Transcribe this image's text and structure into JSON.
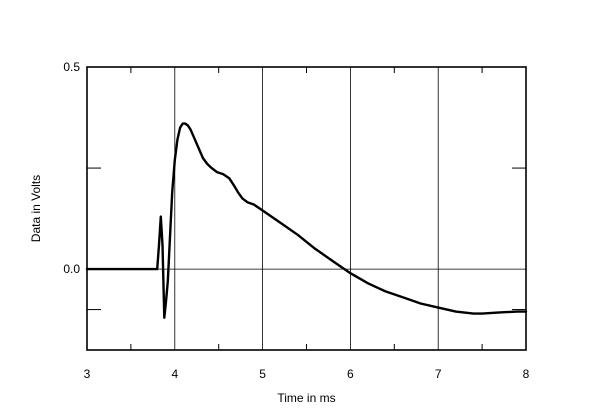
{
  "chart_data": {
    "type": "line",
    "title": "",
    "xlabel": "Time in ms",
    "ylabel": "Data in Volts",
    "xlim": [
      3,
      8
    ],
    "ylim": [
      -0.2,
      0.5
    ],
    "x_ticks": [
      3,
      4,
      5,
      6,
      7,
      8
    ],
    "x_tick_labels": [
      "3",
      "4",
      "5",
      "6",
      "7",
      "8"
    ],
    "y_ticks": [
      0.0,
      0.5
    ],
    "y_tick_labels": [
      "0.0",
      "0.5"
    ],
    "y_minor_ticks": [
      -0.1,
      0.25
    ],
    "x_minor_ticks": [
      3.5,
      4.5,
      5.5,
      6.5,
      7.5
    ],
    "grid": true,
    "line_color": "#000000",
    "series": [
      {
        "x": [
          3.0,
          3.8,
          3.82,
          3.84,
          3.86,
          3.88,
          3.9,
          3.92,
          3.95,
          3.97,
          4.0,
          4.03,
          4.06,
          4.09,
          4.12,
          4.15,
          4.18,
          4.22,
          4.27,
          4.32,
          4.37,
          4.42,
          4.48,
          4.55,
          4.62,
          4.68,
          4.72,
          4.77,
          4.83,
          4.9,
          5.0,
          5.2,
          5.4,
          5.6,
          5.8,
          6.0,
          6.2,
          6.4,
          6.6,
          6.8,
          7.0,
          7.2,
          7.4,
          7.5,
          7.7,
          7.9,
          8.0
        ],
        "y": [
          0.0,
          0.0,
          0.06,
          0.13,
          0.06,
          -0.12,
          -0.08,
          -0.03,
          0.1,
          0.19,
          0.27,
          0.32,
          0.35,
          0.36,
          0.36,
          0.355,
          0.345,
          0.325,
          0.3,
          0.275,
          0.26,
          0.25,
          0.24,
          0.235,
          0.225,
          0.205,
          0.19,
          0.175,
          0.165,
          0.16,
          0.145,
          0.115,
          0.085,
          0.05,
          0.02,
          -0.01,
          -0.035,
          -0.055,
          -0.07,
          -0.085,
          -0.095,
          -0.105,
          -0.11,
          -0.11,
          -0.107,
          -0.105,
          -0.105
        ]
      }
    ]
  }
}
